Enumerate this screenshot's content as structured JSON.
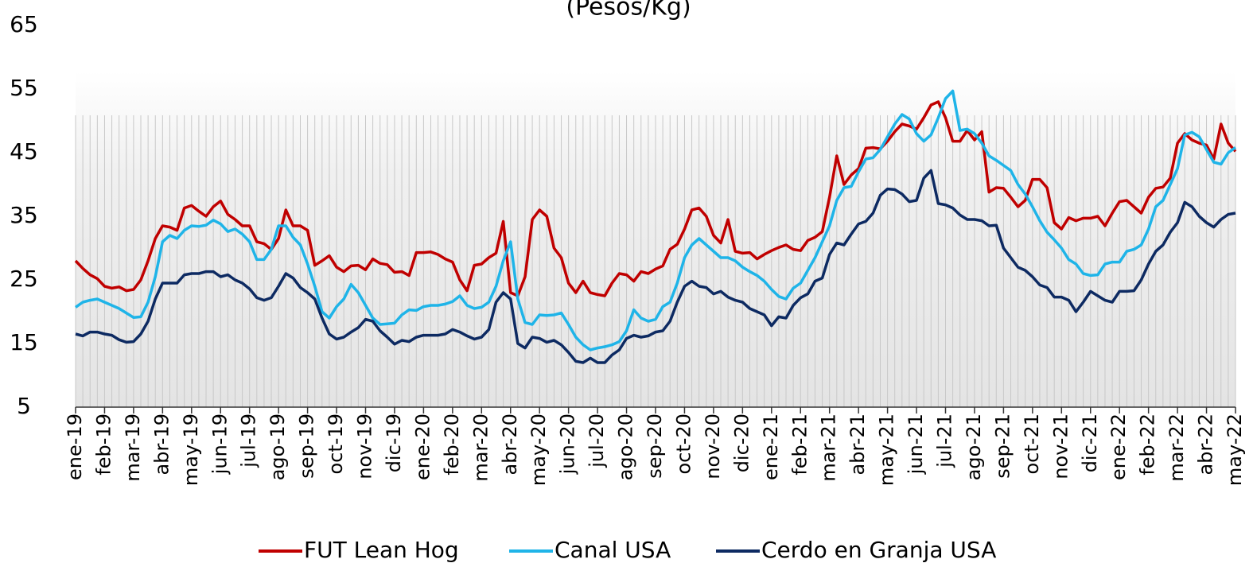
{
  "chart_data": {
    "type": "line",
    "subtitle": "(Pesos/Kg)",
    "categories": [
      "ene-19",
      null,
      null,
      null,
      "feb-19",
      null,
      null,
      null,
      "mar-19",
      null,
      null,
      null,
      "abr-19",
      null,
      null,
      null,
      "may-19",
      null,
      null,
      null,
      "jun-19",
      null,
      null,
      null,
      "jul-19",
      null,
      null,
      null,
      "ago-19",
      null,
      null,
      null,
      "sep-19",
      null,
      null,
      null,
      "oct-19",
      null,
      null,
      null,
      "nov-19",
      null,
      null,
      null,
      "dic-19",
      null,
      null,
      null,
      "ene-20",
      null,
      null,
      null,
      "feb-20",
      null,
      null,
      null,
      "mar-20",
      null,
      null,
      null,
      "abr-20",
      null,
      null,
      null,
      "may-20",
      null,
      null,
      null,
      "jun-20",
      null,
      null,
      null,
      "jul-20",
      null,
      null,
      null,
      "ago-20",
      null,
      null,
      null,
      "sep-20",
      null,
      null,
      null,
      "oct-20",
      null,
      null,
      null,
      "nov-20",
      null,
      null,
      null,
      "dic-20",
      null,
      null,
      null,
      "ene-21",
      null,
      null,
      null,
      "feb-21",
      null,
      null,
      null,
      "mar-21",
      null,
      null,
      null,
      "abr-21",
      null,
      null,
      null,
      "may-21",
      null,
      null,
      null,
      "jun-21",
      null,
      null,
      null,
      "jul-21",
      null,
      null,
      null,
      "ago-21",
      null,
      null,
      null,
      "sep-21",
      null,
      null,
      null,
      "oct-21",
      null,
      null,
      null,
      "nov-21",
      null,
      null,
      null,
      "dic-21",
      null,
      null,
      null,
      "ene-22",
      null,
      null,
      null,
      "feb-22",
      null,
      null,
      null,
      "mar-22",
      null,
      null,
      null,
      "abr-22",
      null,
      null,
      null,
      "may-22"
    ],
    "series": [
      {
        "name": "FUT Lean Hog",
        "color": "#c00000",
        "values": [
          28,
          26.8,
          25.8,
          25.2,
          24,
          23.7,
          23.9,
          23.3,
          23.5,
          25,
          28,
          31.5,
          33.5,
          33.3,
          32.8,
          36.3,
          36.7,
          35.8,
          35,
          36.5,
          37.4,
          35.3,
          34.5,
          33.5,
          33.5,
          31,
          30.7,
          29.8,
          31.5,
          36,
          33.5,
          33.5,
          32.8,
          27.3,
          28,
          28.8,
          27,
          26.3,
          27.2,
          27.3,
          26.6,
          28.3,
          27.6,
          27.4,
          26.2,
          26.3,
          25.7,
          29.3,
          29.3,
          29.4,
          29,
          28.3,
          27.8,
          25,
          23.3,
          27.3,
          27.5,
          28.5,
          29.2,
          34.2,
          23,
          22.5,
          25.5,
          34.5,
          36,
          35,
          30,
          28.5,
          24.5,
          23,
          24.8,
          23,
          22.7,
          22.5,
          24.5,
          26,
          25.8,
          24.8,
          26.3,
          26,
          26.7,
          27.2,
          29.8,
          30.6,
          33,
          36,
          36.3,
          35,
          32,
          30.8,
          34.5,
          29.5,
          29.2,
          29.3,
          28.3,
          29,
          29.6,
          30.1,
          30.5,
          29.8,
          29.6,
          31.2,
          31.7,
          32.6,
          38,
          44.5,
          40,
          41.5,
          42.5,
          45.7,
          45.8,
          45.6,
          46.8,
          48.3,
          49.5,
          49.2,
          48.7,
          50.5,
          52.5,
          53,
          50.5,
          46.8,
          46.8,
          48.5,
          47,
          48.3,
          38.8,
          39.5,
          39.4,
          38,
          36.5,
          37.5,
          40.8,
          40.8,
          39.5,
          34,
          33,
          34.8,
          34.3,
          34.7,
          34.7,
          35,
          33.5,
          35.5,
          37.3,
          37.5,
          36.5,
          35.5,
          38,
          39.4,
          39.6,
          41,
          46.5,
          48,
          47,
          46.5,
          46.2,
          44,
          49.5,
          46.5,
          45.2
        ]
      },
      {
        "name": "Canal USA",
        "color": "#1fb4e8",
        "values": [
          20.7,
          21.5,
          21.8,
          22,
          21.5,
          21,
          20.5,
          19.8,
          19.1,
          19.2,
          21.5,
          25.5,
          31,
          32,
          31.5,
          32.8,
          33.5,
          33.4,
          33.6,
          34.4,
          33.8,
          32.6,
          33,
          32.2,
          31,
          28.2,
          28.2,
          29.8,
          33.5,
          33.5,
          31.7,
          30.5,
          27.5,
          24,
          20,
          19,
          20.8,
          22,
          24.3,
          23,
          21,
          19,
          18,
          18.1,
          18.2,
          19.5,
          20.3,
          20.2,
          20.8,
          21,
          21,
          21.2,
          21.6,
          22.5,
          21,
          20.5,
          20.7,
          21.5,
          24,
          28,
          31,
          22,
          18.3,
          18,
          19.5,
          19.4,
          19.5,
          19.8,
          18,
          16,
          14.8,
          14,
          14.3,
          14.5,
          14.8,
          15.3,
          17,
          20.3,
          19,
          18.5,
          18.8,
          20.8,
          21.5,
          24.5,
          28.5,
          30.5,
          31.5,
          30.5,
          29.5,
          28.5,
          28.5,
          28,
          27,
          26.3,
          25.7,
          24.8,
          23.5,
          22.4,
          22,
          23.7,
          24.5,
          26.5,
          28.5,
          31,
          33.5,
          37.5,
          39.5,
          39.7,
          42,
          44,
          44.2,
          45.5,
          47.5,
          49.5,
          51,
          50.3,
          48,
          46.8,
          47.8,
          50.5,
          53.5,
          54.7,
          48.5,
          48.7,
          48,
          46.5,
          44.5,
          43.8,
          43,
          42.2,
          40,
          38.5,
          36.5,
          34.3,
          32.5,
          31.3,
          30,
          28.2,
          27.5,
          26,
          25.7,
          25.8,
          27.5,
          27.8,
          27.8,
          29.5,
          29.8,
          30.5,
          33,
          36.5,
          37.5,
          40,
          42.5,
          47.8,
          48.2,
          47.5,
          45.5,
          43.5,
          43.2,
          45,
          45.8
        ]
      },
      {
        "name": "Cerdo en Granja USA",
        "color": "#0d2a62",
        "values": [
          16.5,
          16.2,
          16.8,
          16.8,
          16.5,
          16.3,
          15.6,
          15.2,
          15.3,
          16.5,
          18.5,
          22,
          24.5,
          24.5,
          24.5,
          25.8,
          26,
          26,
          26.3,
          26.3,
          25.5,
          25.8,
          25,
          24.5,
          23.6,
          22.2,
          21.8,
          22.2,
          24,
          26,
          25.3,
          23.8,
          23,
          22,
          19,
          16.5,
          15.7,
          16,
          16.8,
          17.5,
          18.8,
          18.5,
          17,
          16,
          14.9,
          15.5,
          15.3,
          16,
          16.3,
          16.3,
          16.3,
          16.5,
          17.2,
          16.8,
          16.2,
          15.7,
          16,
          17.2,
          21.5,
          23,
          22,
          15,
          14.3,
          16,
          15.8,
          15.2,
          15.5,
          14.8,
          13.6,
          12.2,
          12,
          12.7,
          12,
          12,
          13.2,
          14,
          15.8,
          16.3,
          16,
          16.2,
          16.8,
          17,
          18.5,
          21.5,
          24,
          24.8,
          24,
          23.8,
          22.8,
          23.2,
          22.3,
          21.8,
          21.5,
          20.5,
          20,
          19.5,
          17.8,
          19.2,
          19,
          21,
          22.2,
          22.8,
          24.8,
          25.3,
          29,
          30.8,
          30.5,
          32.2,
          33.8,
          34.2,
          35.5,
          38.3,
          39.3,
          39.2,
          38.5,
          37.3,
          37.5,
          41,
          42.2,
          37,
          36.8,
          36.3,
          35.2,
          34.5,
          34.5,
          34.3,
          33.5,
          33.6,
          30,
          28.5,
          27,
          26.5,
          25.5,
          24.2,
          23.8,
          22.3,
          22.3,
          21.8,
          20,
          21.5,
          23.2,
          22.5,
          21.8,
          21.5,
          23.2,
          23.2,
          23.3,
          25,
          27.5,
          29.5,
          30.5,
          32.5,
          34,
          37.2,
          36.5,
          35,
          34,
          33.3,
          34.5,
          35.3,
          35.5
        ]
      }
    ],
    "ylim": [
      5,
      65
    ],
    "yticks": [
      5,
      15,
      25,
      35,
      45,
      55,
      65
    ]
  }
}
